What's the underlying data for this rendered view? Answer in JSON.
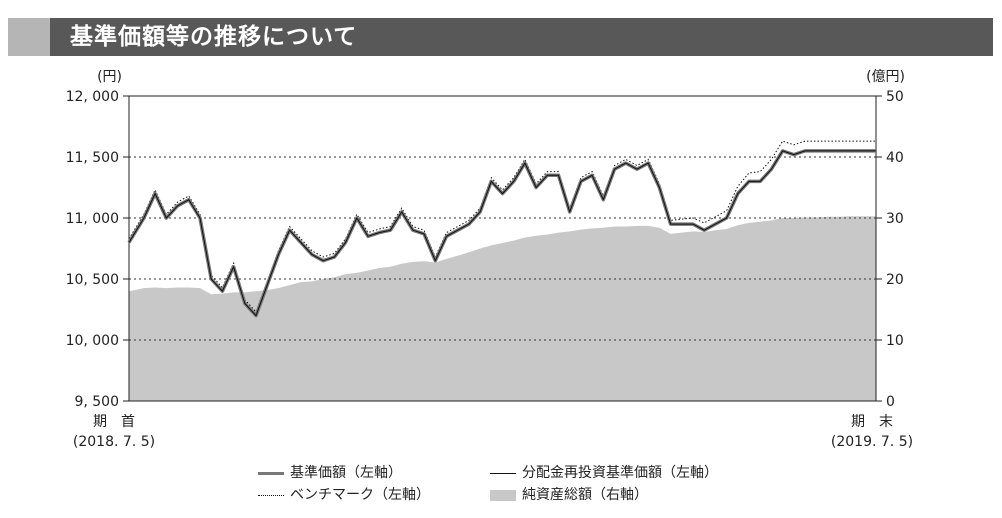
{
  "header": {
    "title": "基準価額等の推移について"
  },
  "chart_data": {
    "type": "line",
    "left_axis": {
      "unit": "(円)",
      "min": 9500,
      "max": 12000,
      "ticks": [
        {
          "value": 12000,
          "label": "12, 000"
        },
        {
          "value": 11500,
          "label": "11, 500"
        },
        {
          "value": 11000,
          "label": "11, 000"
        },
        {
          "value": 10500,
          "label": "10, 500"
        },
        {
          "value": 10000,
          "label": "10, 000"
        },
        {
          "value": 9500,
          "label": "9, 500"
        }
      ]
    },
    "right_axis": {
      "unit": "(億円)",
      "min": 0,
      "max": 50,
      "ticks": [
        {
          "value": 50,
          "label": "50"
        },
        {
          "value": 40,
          "label": "40"
        },
        {
          "value": 30,
          "label": "30"
        },
        {
          "value": 20,
          "label": "20"
        },
        {
          "value": 10,
          "label": "10"
        },
        {
          "value": 0,
          "label": "0"
        }
      ]
    },
    "x_start": {
      "label": "期　首",
      "date": "(2018. 7. 5)"
    },
    "x_end": {
      "label": "期　末",
      "date": "(2019. 7. 5)"
    },
    "grid": "dotted horizontal at 10000, 10500, 11000, 11500",
    "x": [
      0,
      0.02,
      0.035,
      0.05,
      0.065,
      0.08,
      0.095,
      0.11,
      0.125,
      0.14,
      0.155,
      0.17,
      0.185,
      0.2,
      0.215,
      0.23,
      0.245,
      0.26,
      0.275,
      0.29,
      0.305,
      0.32,
      0.335,
      0.35,
      0.365,
      0.38,
      0.395,
      0.41,
      0.425,
      0.44,
      0.455,
      0.47,
      0.485,
      0.5,
      0.515,
      0.53,
      0.545,
      0.56,
      0.575,
      0.59,
      0.605,
      0.62,
      0.635,
      0.65,
      0.665,
      0.68,
      0.695,
      0.71,
      0.725,
      0.74,
      0.755,
      0.77,
      0.785,
      0.8,
      0.815,
      0.83,
      0.845,
      0.86,
      0.875,
      0.89,
      0.905,
      0.92,
      0.935,
      0.95,
      0.965,
      0.98,
      1
    ],
    "series": [
      {
        "name": "基準価額（左軸）",
        "axis": "left",
        "values": [
          10800,
          11000,
          11200,
          11000,
          11100,
          11150,
          11000,
          10500,
          10400,
          10600,
          10300,
          10200,
          10450,
          10700,
          10900,
          10800,
          10700,
          10650,
          10680,
          10800,
          11000,
          10850,
          10880,
          10900,
          11050,
          10900,
          10870,
          10650,
          10850,
          10900,
          10950,
          11050,
          11300,
          11200,
          11300,
          11450,
          11250,
          11350,
          11350,
          11050,
          11300,
          11350,
          11150,
          11400,
          11450,
          11400,
          11450,
          11250,
          10950,
          10950,
          10950,
          10900,
          10950,
          11000,
          11200,
          11300,
          11300,
          11400,
          11550,
          11520,
          11550,
          11550,
          11550,
          11550,
          11550,
          11550,
          11550
        ]
      },
      {
        "name": "分配金再投資基準価額（左軸）",
        "axis": "left",
        "values": [
          10800,
          11000,
          11200,
          11000,
          11100,
          11150,
          11000,
          10500,
          10400,
          10600,
          10300,
          10200,
          10450,
          10700,
          10900,
          10800,
          10700,
          10650,
          10680,
          10800,
          11000,
          10850,
          10880,
          10900,
          11050,
          10900,
          10870,
          10650,
          10850,
          10900,
          10950,
          11050,
          11300,
          11200,
          11300,
          11450,
          11250,
          11350,
          11350,
          11050,
          11300,
          11350,
          11150,
          11400,
          11450,
          11400,
          11450,
          11250,
          10950,
          10950,
          10950,
          10900,
          10950,
          11000,
          11200,
          11300,
          11300,
          11400,
          11550,
          11520,
          11550,
          11550,
          11550,
          11550,
          11550,
          11550,
          11550
        ]
      },
      {
        "name": "ベンチマーク（左軸）",
        "axis": "left",
        "values": [
          10830,
          11030,
          11230,
          11030,
          11130,
          11180,
          11030,
          10530,
          10430,
          10630,
          10330,
          10230,
          10480,
          10730,
          10930,
          10830,
          10730,
          10680,
          10710,
          10830,
          11030,
          10880,
          10910,
          10930,
          11080,
          10930,
          10900,
          10680,
          10880,
          10930,
          10980,
          11080,
          11330,
          11230,
          11330,
          11480,
          11280,
          11380,
          11380,
          11080,
          11330,
          11380,
          11180,
          11430,
          11480,
          11430,
          11480,
          11280,
          10980,
          10990,
          11000,
          10960,
          11010,
          11060,
          11260,
          11370,
          11380,
          11480,
          11630,
          11600,
          11630,
          11630,
          11630,
          11630,
          11630,
          11630,
          11630
        ]
      },
      {
        "name": "純資産総額（右軸）",
        "axis": "right",
        "values": [
          18,
          18.5,
          18.6,
          18.5,
          18.6,
          18.6,
          18.5,
          17.5,
          17.6,
          17.8,
          17.8,
          18,
          18.2,
          18.5,
          19,
          19.5,
          19.6,
          20,
          20.3,
          20.8,
          21,
          21.4,
          21.8,
          22,
          22.5,
          22.8,
          22.9,
          22.7,
          23.3,
          23.8,
          24.4,
          25,
          25.5,
          25.9,
          26.3,
          26.8,
          27.1,
          27.3,
          27.6,
          27.8,
          28.1,
          28.3,
          28.4,
          28.6,
          28.6,
          28.7,
          28.7,
          28.4,
          27.4,
          27.6,
          27.8,
          27.7,
          28,
          28.2,
          28.8,
          29.2,
          29.4,
          29.6,
          30,
          30,
          30.1,
          30.1,
          30.2,
          30.2,
          30.3,
          30.3,
          30.3
        ]
      }
    ]
  },
  "legend": {
    "nav": "基準価額（左軸）",
    "reinvested": "分配金再投資基準価額（左軸）",
    "benchmark": "ベンチマーク（左軸）",
    "net_assets": "純資産総額（右軸）"
  },
  "colors": {
    "nav": "#777777",
    "reinvested": "#111111",
    "benchmark": "#111111",
    "net_assets": "#c8c8c8",
    "header": "#585858",
    "header_accent": "#b5b5b5"
  }
}
